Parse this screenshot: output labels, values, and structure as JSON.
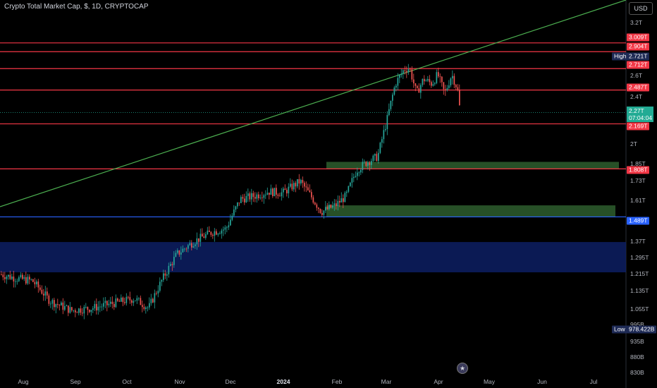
{
  "header": {
    "title": "Crypto Total Market Cap, $, 1D, CRYPTOCAP",
    "currency": "USD"
  },
  "chart_data": {
    "type": "candlestick",
    "y_scale": "log",
    "y_ticks": [
      "3.2T",
      "2.6T",
      "2.4T",
      "2T",
      "1.85T",
      "1.73T",
      "1.61T",
      "1.37T",
      "1.295T",
      "1.215T",
      "1.135T",
      "1.055T",
      "995B",
      "935B",
      "880B",
      "830B"
    ],
    "x_ticks": [
      "Aug",
      "Sep",
      "Oct",
      "Nov",
      "Dec",
      "2024",
      "Feb",
      "Mar",
      "Apr",
      "May",
      "Jun",
      "Jul"
    ],
    "current_price": {
      "value": "2.27T",
      "countdown": "07:04:04"
    },
    "high": {
      "label": "High",
      "value": "2.721T"
    },
    "low": {
      "label": "Low",
      "value": "978.422B"
    },
    "horizontal_levels": [
      {
        "value": "3.009T",
        "color": "#f23645"
      },
      {
        "value": "2.904T",
        "color": "#f23645"
      },
      {
        "value": "2.712T",
        "color": "#f23645"
      },
      {
        "value": "2.487T",
        "color": "#f23645"
      },
      {
        "value": "2.169T",
        "color": "#f23645"
      },
      {
        "value": "1.808T",
        "color": "#f23645"
      },
      {
        "value": "1.489T",
        "color": "#2962ff"
      }
    ],
    "zones": [
      {
        "from": "1.808T",
        "to": "1.86T",
        "color": "#2e5e2e"
      },
      {
        "from": "1.49T",
        "to": "1.56T",
        "color": "#2e5e2e"
      },
      {
        "from": "1.19T",
        "to": "1.345T",
        "color": "#0d1f63"
      }
    ],
    "trendline": {
      "color": "#4caf50"
    },
    "colors": {
      "up": "#26a69a",
      "down": "#ef5350"
    }
  }
}
